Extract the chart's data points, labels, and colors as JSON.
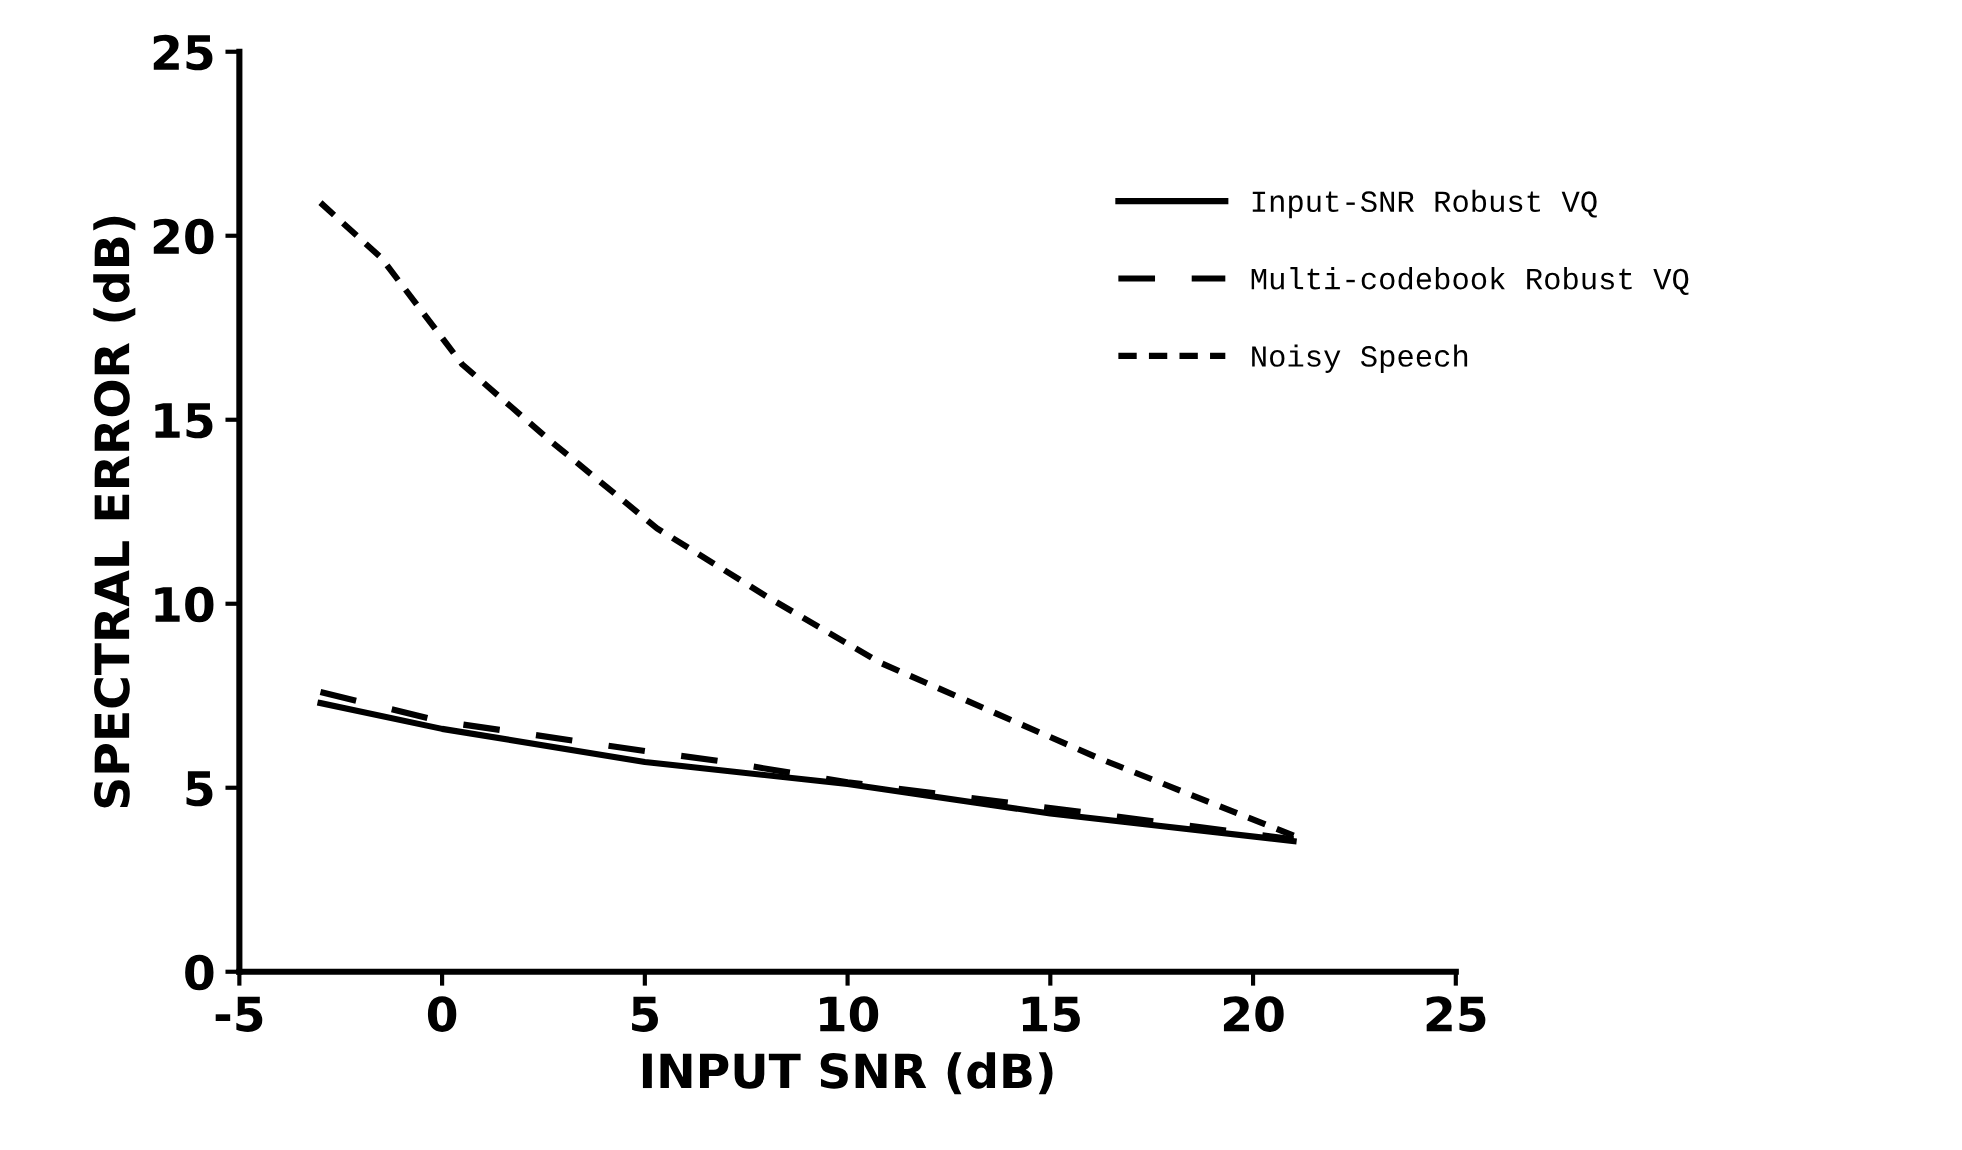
{
  "chart_data": {
    "type": "line",
    "xlabel": "INPUT SNR (dB)",
    "ylabel": "SPECTRAL ERROR (dB)",
    "xlim": [
      -5,
      25
    ],
    "xticks": [
      -5,
      0,
      5,
      10,
      15,
      20,
      25
    ],
    "ylim": [
      0,
      25
    ],
    "yticks": [
      0,
      5,
      10,
      15,
      20,
      25
    ],
    "grid": false,
    "legend": "top right",
    "marker": "none",
    "series": [
      {
        "name": "Input-SNR Robust VQ",
        "color": "#000000",
        "line_style": "solid",
        "x": [
          -3,
          0,
          5,
          10,
          15,
          21
        ],
        "values": [
          7.3,
          6.6,
          5.7,
          5.1,
          4.3,
          3.55
        ]
      },
      {
        "name": "Multi-codebook Robust VQ",
        "color": "#000000",
        "line_style": "dashed",
        "x": [
          -3,
          0,
          5,
          7,
          10,
          15,
          21
        ],
        "values": [
          7.6,
          6.8,
          6.0,
          5.7,
          5.15,
          4.45,
          3.6
        ]
      },
      {
        "name": "Noisy Speech",
        "color": "#000000",
        "line_style": "dotted",
        "x": [
          -3,
          -1.5,
          0.5,
          2.7,
          5.3,
          8,
          10.8,
          13.7,
          16.2,
          21
        ],
        "values": [
          20.9,
          19.4,
          16.5,
          14.4,
          12.05,
          10.2,
          8.4,
          7.0,
          5.8,
          3.7
        ]
      }
    ]
  }
}
